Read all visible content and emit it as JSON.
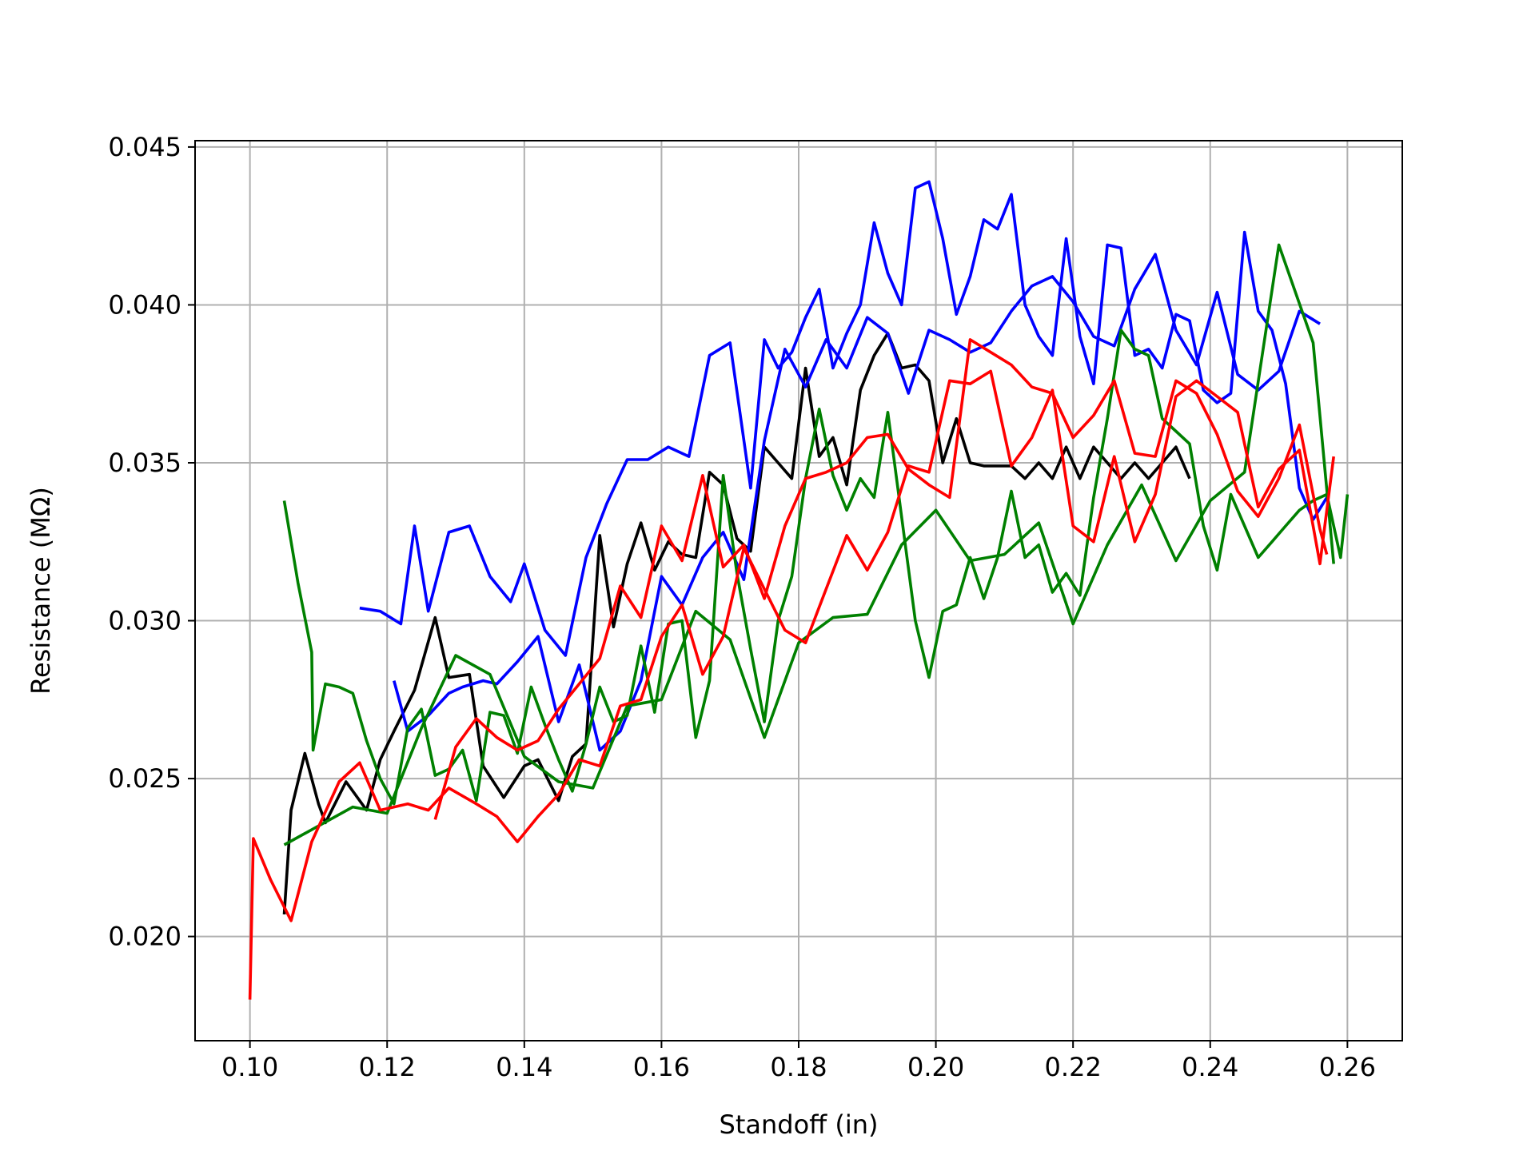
{
  "chart_data": {
    "type": "line",
    "title": "",
    "xlabel": "Standoff (in)",
    "ylabel": "Resistance (MΩ)",
    "xlim": [
      0.092,
      0.268
    ],
    "ylim": [
      0.0167,
      0.0452
    ],
    "xticks": [
      0.1,
      0.12,
      0.14,
      0.16,
      0.18,
      0.2,
      0.22,
      0.24,
      0.26
    ],
    "xtick_labels": [
      "0.10",
      "0.12",
      "0.14",
      "0.16",
      "0.18",
      "0.20",
      "0.22",
      "0.24",
      "0.26"
    ],
    "yticks": [
      0.02,
      0.025,
      0.03,
      0.035,
      0.04,
      0.045
    ],
    "ytick_labels": [
      "0.020",
      "0.025",
      "0.030",
      "0.035",
      "0.040",
      "0.045"
    ],
    "grid": true,
    "legend": "none",
    "series": [
      {
        "color": "#000000",
        "x": [
          0.105,
          0.106,
          0.108,
          0.11,
          0.111,
          0.114,
          0.117,
          0.119,
          0.121,
          0.124,
          0.127,
          0.129,
          0.132,
          0.134,
          0.137,
          0.14,
          0.142,
          0.145,
          0.147,
          0.149,
          0.151,
          0.153,
          0.155,
          0.157,
          0.159,
          0.161,
          0.163,
          0.165,
          0.167,
          0.169,
          0.171,
          0.173,
          0.175,
          0.177,
          0.179,
          0.181,
          0.183,
          0.185,
          0.187,
          0.189,
          0.191,
          0.193,
          0.195,
          0.197,
          0.199,
          0.201,
          0.203,
          0.205,
          0.207,
          0.209,
          0.211,
          0.213,
          0.215,
          0.217,
          0.219,
          0.221,
          0.223,
          0.225,
          0.227,
          0.229,
          0.231,
          0.233,
          0.235,
          0.237
        ],
        "y": [
          0.0207,
          0.024,
          0.0258,
          0.0242,
          0.0236,
          0.0249,
          0.024,
          0.0256,
          0.0265,
          0.0278,
          0.0301,
          0.0282,
          0.0283,
          0.0254,
          0.0244,
          0.0254,
          0.0256,
          0.0243,
          0.0257,
          0.0261,
          0.0327,
          0.0298,
          0.0318,
          0.0331,
          0.0316,
          0.0325,
          0.0321,
          0.032,
          0.0347,
          0.0343,
          0.0326,
          0.0322,
          0.0355,
          0.035,
          0.0345,
          0.038,
          0.0352,
          0.0358,
          0.0343,
          0.0373,
          0.0384,
          0.0391,
          0.038,
          0.0381,
          0.0376,
          0.035,
          0.0364,
          0.035,
          0.0349,
          0.0349,
          0.0349,
          0.0345,
          0.035,
          0.0345,
          0.0355,
          0.0345,
          0.0355,
          0.035,
          0.0345,
          0.035,
          0.0345,
          0.035,
          0.0355,
          0.0345
        ]
      },
      {
        "color": "#0000ff",
        "x": [
          0.116,
          0.119,
          0.122,
          0.124,
          0.126,
          0.129,
          0.132,
          0.135,
          0.138,
          0.14,
          0.143,
          0.146,
          0.149,
          0.152,
          0.155,
          0.158,
          0.161,
          0.164,
          0.167,
          0.17,
          0.173,
          0.175,
          0.177,
          0.179,
          0.181,
          0.183,
          0.185,
          0.187,
          0.189,
          0.191,
          0.193,
          0.195,
          0.197,
          0.199,
          0.201,
          0.203,
          0.205,
          0.207,
          0.209,
          0.211,
          0.213,
          0.215,
          0.217,
          0.219,
          0.221,
          0.223,
          0.225,
          0.227,
          0.229,
          0.231,
          0.233,
          0.235,
          0.237,
          0.239,
          0.241,
          0.243,
          0.245,
          0.247,
          0.249,
          0.251,
          0.253,
          0.255,
          0.257
        ],
        "y": [
          0.0304,
          0.0303,
          0.0299,
          0.033,
          0.0303,
          0.0328,
          0.033,
          0.0314,
          0.0306,
          0.0318,
          0.0297,
          0.0289,
          0.032,
          0.0337,
          0.0351,
          0.0351,
          0.0355,
          0.0352,
          0.0384,
          0.0388,
          0.0342,
          0.0389,
          0.038,
          0.0385,
          0.0396,
          0.0405,
          0.038,
          0.0391,
          0.04,
          0.0426,
          0.041,
          0.04,
          0.0437,
          0.0439,
          0.0421,
          0.0397,
          0.0409,
          0.0427,
          0.0424,
          0.0435,
          0.04,
          0.039,
          0.0384,
          0.0421,
          0.039,
          0.0375,
          0.0419,
          0.0418,
          0.0384,
          0.0386,
          0.038,
          0.0397,
          0.0395,
          0.0373,
          0.0369,
          0.0372,
          0.0423,
          0.0398,
          0.0392,
          0.0375,
          0.0342,
          0.0332,
          0.0339
        ]
      },
      {
        "color": "#0000ff",
        "x": [
          0.121,
          0.123,
          0.126,
          0.129,
          0.131,
          0.134,
          0.136,
          0.139,
          0.142,
          0.145,
          0.148,
          0.151,
          0.154,
          0.157,
          0.16,
          0.163,
          0.166,
          0.169,
          0.172,
          0.175,
          0.178,
          0.181,
          0.184,
          0.187,
          0.19,
          0.193,
          0.196,
          0.199,
          0.202,
          0.205,
          0.208,
          0.211,
          0.214,
          0.217,
          0.22,
          0.223,
          0.226,
          0.229,
          0.232,
          0.235,
          0.238,
          0.241,
          0.244,
          0.247,
          0.25,
          0.253,
          0.256
        ],
        "y": [
          0.0281,
          0.0265,
          0.027,
          0.0277,
          0.0279,
          0.0281,
          0.028,
          0.0287,
          0.0295,
          0.0268,
          0.0286,
          0.0259,
          0.0265,
          0.0281,
          0.0314,
          0.0305,
          0.032,
          0.0328,
          0.0313,
          0.0357,
          0.0386,
          0.0374,
          0.0389,
          0.038,
          0.0396,
          0.0391,
          0.0372,
          0.0392,
          0.0389,
          0.0385,
          0.0388,
          0.0398,
          0.0406,
          0.0409,
          0.0401,
          0.039,
          0.0387,
          0.0405,
          0.0416,
          0.0392,
          0.0381,
          0.0404,
          0.0378,
          0.0373,
          0.0379,
          0.0398,
          0.0394
        ]
      },
      {
        "color": "#008000",
        "x": [
          0.105,
          0.107,
          0.109,
          0.1092,
          0.111,
          0.113,
          0.115,
          0.117,
          0.119,
          0.121,
          0.123,
          0.125,
          0.127,
          0.129,
          0.131,
          0.133,
          0.135,
          0.137,
          0.139,
          0.141,
          0.143,
          0.145,
          0.147,
          0.149,
          0.151,
          0.153,
          0.155,
          0.157,
          0.159,
          0.161,
          0.163,
          0.165,
          0.167,
          0.169,
          0.171,
          0.173,
          0.175,
          0.177,
          0.179,
          0.181,
          0.183,
          0.185,
          0.187,
          0.189,
          0.191,
          0.193,
          0.195,
          0.197,
          0.199,
          0.201,
          0.203,
          0.205,
          0.207,
          0.209,
          0.211,
          0.213,
          0.215,
          0.217,
          0.219,
          0.221,
          0.223,
          0.225,
          0.227,
          0.229,
          0.231,
          0.233,
          0.235,
          0.237,
          0.239,
          0.241,
          0.243,
          0.245,
          0.247,
          0.249,
          0.251,
          0.253,
          0.255,
          0.257,
          0.259,
          0.26
        ],
        "y": [
          0.0338,
          0.0312,
          0.029,
          0.0259,
          0.028,
          0.0279,
          0.0277,
          0.0262,
          0.025,
          0.0242,
          0.0266,
          0.0272,
          0.0251,
          0.0253,
          0.0259,
          0.0243,
          0.0271,
          0.027,
          0.0258,
          0.0279,
          0.0267,
          0.0256,
          0.0246,
          0.0261,
          0.0279,
          0.0268,
          0.027,
          0.0292,
          0.0271,
          0.0299,
          0.03,
          0.0263,
          0.0281,
          0.0346,
          0.0315,
          0.0291,
          0.0268,
          0.03,
          0.0314,
          0.0345,
          0.0367,
          0.0346,
          0.0335,
          0.0345,
          0.0339,
          0.0366,
          0.0333,
          0.03,
          0.0282,
          0.0303,
          0.0305,
          0.032,
          0.0307,
          0.032,
          0.0341,
          0.032,
          0.0324,
          0.0309,
          0.0315,
          0.0308,
          0.0339,
          0.0364,
          0.0392,
          0.0386,
          0.0384,
          0.0364,
          0.036,
          0.0356,
          0.033,
          0.0316,
          0.034,
          0.033,
          0.032,
          0.0325,
          0.033,
          0.0335,
          0.0338,
          0.034,
          0.032,
          0.034
        ]
      },
      {
        "color": "#008000",
        "x": [
          0.105,
          0.11,
          0.115,
          0.12,
          0.125,
          0.13,
          0.135,
          0.14,
          0.145,
          0.15,
          0.155,
          0.16,
          0.165,
          0.17,
          0.175,
          0.18,
          0.185,
          0.19,
          0.195,
          0.2,
          0.205,
          0.21,
          0.215,
          0.22,
          0.225,
          0.23,
          0.235,
          0.24,
          0.245,
          0.25,
          0.255,
          0.258
        ],
        "y": [
          0.0229,
          0.0235,
          0.0241,
          0.0239,
          0.0266,
          0.0289,
          0.0283,
          0.0257,
          0.0249,
          0.0247,
          0.0273,
          0.0275,
          0.0303,
          0.0294,
          0.0263,
          0.0293,
          0.0301,
          0.0302,
          0.0324,
          0.0335,
          0.0319,
          0.0321,
          0.0331,
          0.0299,
          0.0324,
          0.0343,
          0.0319,
          0.0338,
          0.0347,
          0.0419,
          0.0388,
          0.0318
        ]
      },
      {
        "color": "#ff0000",
        "x": [
          0.1,
          0.1005,
          0.103,
          0.106,
          0.109,
          0.113,
          0.116,
          0.119,
          0.123,
          0.126,
          0.129,
          0.133,
          0.136,
          0.139,
          0.142,
          0.145,
          0.148,
          0.151,
          0.154,
          0.157,
          0.16,
          0.163,
          0.166,
          0.169,
          0.172,
          0.175,
          0.178,
          0.181,
          0.184,
          0.187,
          0.19,
          0.193,
          0.196,
          0.199,
          0.202,
          0.205,
          0.208,
          0.211,
          0.214,
          0.217,
          0.22,
          0.223,
          0.226,
          0.229,
          0.232,
          0.235,
          0.238,
          0.241,
          0.244,
          0.247,
          0.25,
          0.253,
          0.256,
          0.258
        ],
        "y": [
          0.018,
          0.0231,
          0.0218,
          0.0205,
          0.023,
          0.0249,
          0.0255,
          0.024,
          0.0242,
          0.024,
          0.0247,
          0.0242,
          0.0238,
          0.023,
          0.0238,
          0.0245,
          0.0256,
          0.0254,
          0.0273,
          0.0275,
          0.0295,
          0.0305,
          0.0283,
          0.0295,
          0.0323,
          0.031,
          0.0297,
          0.0293,
          0.031,
          0.0327,
          0.0316,
          0.0328,
          0.0349,
          0.0347,
          0.0376,
          0.0375,
          0.0379,
          0.0349,
          0.0358,
          0.0373,
          0.033,
          0.0325,
          0.0352,
          0.0325,
          0.034,
          0.0371,
          0.0376,
          0.0371,
          0.0366,
          0.0336,
          0.0348,
          0.0354,
          0.0318,
          0.0352
        ]
      },
      {
        "color": "#ff0000",
        "x": [
          0.127,
          0.13,
          0.133,
          0.136,
          0.139,
          0.142,
          0.145,
          0.148,
          0.151,
          0.154,
          0.157,
          0.16,
          0.163,
          0.166,
          0.169,
          0.172,
          0.175,
          0.178,
          0.181,
          0.184,
          0.187,
          0.19,
          0.193,
          0.196,
          0.199,
          0.202,
          0.205,
          0.208,
          0.211,
          0.214,
          0.217,
          0.22,
          0.223,
          0.226,
          0.229,
          0.232,
          0.235,
          0.238,
          0.241,
          0.244,
          0.247,
          0.25,
          0.253,
          0.256,
          0.257
        ],
        "y": [
          0.0237,
          0.026,
          0.0269,
          0.0263,
          0.0259,
          0.0262,
          0.0272,
          0.028,
          0.0288,
          0.0311,
          0.0301,
          0.033,
          0.0319,
          0.0346,
          0.0317,
          0.0324,
          0.0307,
          0.033,
          0.0345,
          0.0347,
          0.035,
          0.0358,
          0.0359,
          0.0348,
          0.0343,
          0.0339,
          0.0389,
          0.0385,
          0.0381,
          0.0374,
          0.0372,
          0.0358,
          0.0365,
          0.0376,
          0.0353,
          0.0352,
          0.0376,
          0.0372,
          0.0359,
          0.0341,
          0.0333,
          0.0345,
          0.0362,
          0.0329,
          0.0321
        ]
      }
    ]
  }
}
